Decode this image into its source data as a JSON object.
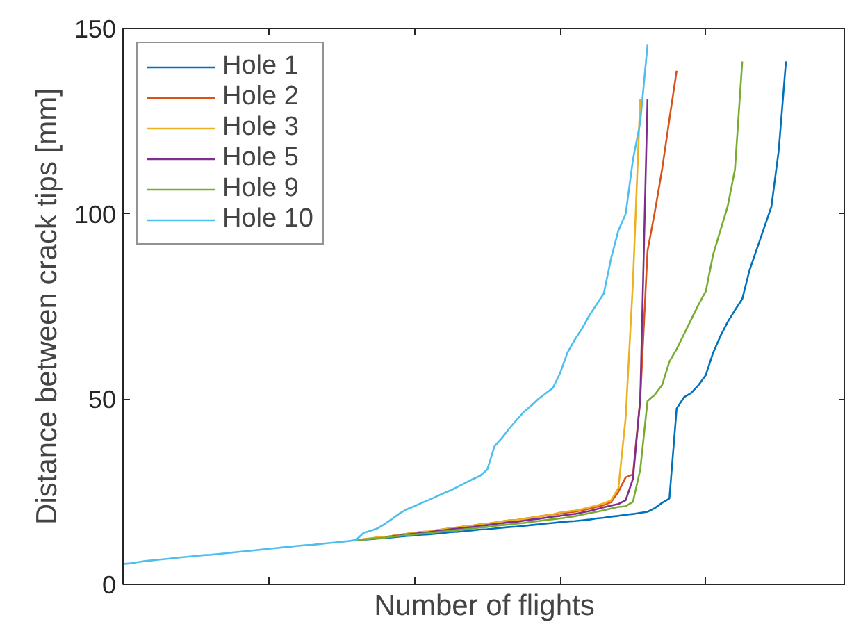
{
  "chart_data": {
    "type": "line",
    "xlabel": "Number of flights",
    "ylabel": "Distance between crack tips [mm]",
    "categories": [
      null,
      null,
      null,
      null,
      null,
      null,
      null,
      null,
      null,
      null,
      null,
      null,
      null,
      null,
      null,
      null,
      null,
      null,
      null,
      null,
      null,
      null,
      null,
      null,
      null,
      null,
      null,
      null,
      null,
      null,
      null,
      null,
      null,
      null,
      null,
      null,
      null,
      null,
      null,
      null,
      null,
      null,
      null,
      null,
      null,
      null,
      null,
      null,
      null,
      null,
      null,
      null,
      null,
      null,
      null,
      null,
      null,
      null,
      null,
      null,
      null,
      null,
      null,
      null,
      null,
      null,
      null,
      null,
      null,
      null,
      null,
      null,
      null,
      null,
      null,
      null,
      null,
      null,
      null,
      null,
      null,
      null,
      null,
      null,
      null,
      null,
      null,
      null,
      null,
      null,
      null,
      null,
      null,
      null,
      null,
      null,
      null,
      null,
      null,
      null
    ],
    "ylim": [
      0,
      150
    ],
    "yticks": [
      0,
      50,
      100,
      150
    ],
    "tick_labels": "y",
    "grid": false,
    "legend": "top left",
    "line_style": "solid",
    "series": [
      {
        "name": "Hole 1",
        "color": "#0072bd",
        "values": [
          null,
          null,
          null,
          null,
          null,
          null,
          null,
          null,
          null,
          null,
          null,
          null,
          null,
          null,
          null,
          null,
          null,
          null,
          null,
          null,
          null,
          null,
          null,
          null,
          null,
          null,
          null,
          null,
          null,
          null,
          null,
          null,
          11.9,
          12.1,
          12.2,
          12.4,
          12.5,
          12.7,
          12.9,
          13.1,
          13.2,
          13.4,
          13.5,
          13.7,
          13.9,
          14.1,
          14.2,
          14.4,
          14.6,
          14.8,
          14.9,
          15.1,
          15.3,
          15.5,
          15.6,
          15.8,
          16.0,
          16.2,
          16.4,
          16.6,
          16.8,
          17.0,
          17.1,
          17.3,
          17.5,
          17.8,
          18.0,
          18.3,
          18.5,
          18.8,
          19.0,
          19.3,
          19.6,
          20.6,
          22.0,
          23.2,
          47.5,
          50.5,
          51.7,
          53.8,
          56.5,
          62.5,
          67,
          70.8,
          74,
          77,
          84.8,
          90.5,
          96.2,
          101.9,
          117,
          141.1,
          null,
          null,
          null,
          null,
          null,
          null,
          null,
          null
        ]
      },
      {
        "name": "Hole 2",
        "color": "#d95319",
        "values": [
          null,
          null,
          null,
          null,
          null,
          null,
          null,
          null,
          null,
          null,
          null,
          null,
          null,
          null,
          null,
          null,
          null,
          null,
          null,
          null,
          null,
          null,
          null,
          null,
          null,
          null,
          null,
          null,
          null,
          null,
          null,
          null,
          11.9,
          12.2,
          12.4,
          12.7,
          12.8,
          13.1,
          13.4,
          13.7,
          13.9,
          14.2,
          14.3,
          14.6,
          14.9,
          15.2,
          15.4,
          15.7,
          15.9,
          16.2,
          16.4,
          16.7,
          17.0,
          17.3,
          17.4,
          17.7,
          18.0,
          18.3,
          18.6,
          18.9,
          19.1,
          19.4,
          19.6,
          20.0,
          20.4,
          20.9,
          21.4,
          22.2,
          25,
          28.9,
          29.7,
          50,
          90,
          100.5,
          112,
          125.5,
          138.6,
          null,
          null,
          null,
          null,
          null,
          null,
          null,
          null,
          null,
          null,
          null,
          null,
          null,
          null,
          null,
          null,
          null,
          null,
          null,
          null,
          null,
          null,
          null
        ]
      },
      {
        "name": "Hole 3",
        "color": "#edb120",
        "values": [
          null,
          null,
          null,
          null,
          null,
          null,
          null,
          null,
          null,
          null,
          null,
          null,
          null,
          null,
          null,
          null,
          null,
          null,
          null,
          null,
          null,
          null,
          null,
          null,
          null,
          null,
          null,
          null,
          null,
          null,
          null,
          null,
          11.9,
          12.2,
          12.4,
          12.7,
          12.8,
          13.1,
          13.4,
          13.7,
          13.9,
          14.2,
          14.3,
          14.6,
          14.9,
          15.2,
          15.4,
          15.7,
          15.9,
          16.2,
          16.4,
          16.7,
          17.0,
          17.3,
          17.4,
          17.7,
          18.0,
          18.3,
          18.6,
          18.9,
          19.4,
          19.7,
          19.9,
          20.3,
          20.8,
          21.3,
          21.9,
          22.7,
          26,
          45,
          81.6,
          131,
          null,
          null,
          null,
          null,
          null,
          null,
          null,
          null,
          null,
          null,
          null,
          null,
          null,
          null,
          null,
          null,
          null,
          null,
          null,
          null,
          null,
          null,
          null,
          null,
          null,
          null,
          null,
          null
        ]
      },
      {
        "name": "Hole 5",
        "color": "#7e2f8e",
        "values": [
          null,
          null,
          null,
          null,
          null,
          null,
          null,
          null,
          null,
          null,
          null,
          null,
          null,
          null,
          null,
          null,
          null,
          null,
          null,
          null,
          null,
          null,
          null,
          null,
          null,
          null,
          null,
          null,
          null,
          null,
          null,
          null,
          null,
          null,
          null,
          null,
          12.7,
          13.0,
          13.2,
          13.5,
          13.7,
          13.9,
          14.1,
          14.4,
          14.6,
          14.9,
          15.1,
          15.3,
          15.5,
          15.8,
          16.0,
          16.3,
          16.5,
          16.8,
          16.9,
          17.2,
          17.5,
          17.7,
          18.0,
          18.3,
          18.5,
          18.8,
          19.0,
          19.4,
          19.8,
          20.3,
          20.8,
          21.3,
          21.7,
          22.7,
          28.5,
          50,
          131,
          null,
          null,
          null,
          null,
          null,
          null,
          null,
          null,
          null,
          null,
          null,
          null,
          null,
          null,
          null,
          null,
          null,
          null,
          null,
          null,
          null,
          null,
          null,
          null,
          null,
          null,
          null
        ]
      },
      {
        "name": "Hole 9",
        "color": "#77ac30",
        "values": [
          null,
          null,
          null,
          null,
          null,
          null,
          null,
          null,
          null,
          null,
          null,
          null,
          null,
          null,
          null,
          null,
          null,
          null,
          null,
          null,
          null,
          null,
          null,
          null,
          null,
          null,
          null,
          null,
          null,
          null,
          null,
          null,
          11.9,
          12.1,
          12.3,
          12.5,
          12.6,
          12.9,
          13.1,
          13.3,
          13.5,
          13.7,
          13.8,
          14.1,
          14.3,
          14.5,
          14.7,
          14.9,
          15.1,
          15.4,
          15.5,
          15.8,
          16.0,
          16.2,
          16.4,
          16.6,
          16.9,
          17.1,
          17.4,
          17.6,
          17.8,
          18.1,
          18.4,
          18.8,
          19.2,
          19.6,
          20.0,
          20.5,
          20.9,
          21.1,
          22.3,
          31.0,
          49.5,
          51.2,
          53.8,
          60.1,
          63.5,
          67.5,
          71.5,
          75.5,
          79.1,
          89,
          95.5,
          102,
          112,
          141.1,
          null,
          null,
          null,
          null,
          null,
          null,
          null,
          null,
          null,
          null,
          null,
          null,
          null,
          null
        ]
      },
      {
        "name": "Hole 10",
        "color": "#4dbeee",
        "values": [
          5.5,
          5.7,
          6.0,
          6.3,
          6.5,
          6.7,
          6.9,
          7.1,
          7.3,
          7.5,
          7.7,
          7.9,
          8.0,
          8.2,
          8.4,
          8.6,
          8.8,
          9.0,
          9.2,
          9.4,
          9.6,
          9.8,
          10.0,
          10.2,
          10.4,
          10.6,
          10.7,
          10.9,
          11.1,
          11.3,
          11.5,
          11.7,
          12.0,
          13.9,
          14.5,
          15.2,
          16.4,
          17.8,
          19.2,
          20.3,
          21.1,
          22.0,
          22.8,
          23.7,
          24.6,
          25.4,
          26.4,
          27.4,
          28.4,
          29.3,
          31.0,
          37.3,
          39.5,
          42.0,
          44.3,
          46.5,
          48.2,
          50.0,
          51.5,
          53.0,
          57,
          62.5,
          66,
          69,
          72.5,
          75.5,
          78.5,
          88,
          95.5,
          100,
          114.6,
          124.7,
          145.6,
          null,
          null,
          null,
          null,
          null,
          null,
          null,
          null,
          null,
          null,
          null,
          null,
          null,
          null,
          null,
          null,
          null,
          null,
          null,
          null,
          null,
          null,
          null,
          null,
          null,
          null,
          null
        ]
      }
    ]
  }
}
